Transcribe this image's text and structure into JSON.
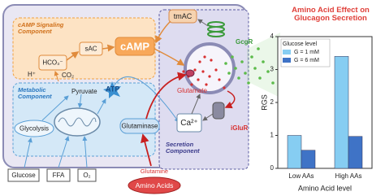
{
  "diagram": {
    "tmac": "tmAC",
    "camp_component": "cAMP Signaling Component",
    "sac": "sAC",
    "camp": "cAMP",
    "hco3": "HCO₃⁻",
    "h": "H⁺",
    "co2": "CO₂",
    "gcgr": "GcgR",
    "metabolic_component": "Metabolic Component",
    "pyruvate": "Pyruvate",
    "atp": "ATP",
    "glycolysis": "Glycolysis",
    "glutaminase": "Glutaminase",
    "glutamate": "Glutamate",
    "iglur": "iGluR",
    "ca": "Ca²⁺",
    "secretion_component": "Secretion Component",
    "glucose": "Glucose",
    "ffa": "FFA",
    "o2": "O₂",
    "amino_acids": "Amino Acids",
    "glutamine": "Glutamine"
  },
  "chart_data": {
    "type": "bar",
    "title": "Amino Acid Effect on Glucagon Secretion",
    "x_label": "Amino Acid level",
    "y_label": "RGS",
    "legend_title": "Glucose level",
    "categories": [
      "Low AAs",
      "High AAs"
    ],
    "series": [
      {
        "name": "G = 1 mM",
        "color": "#86cdf2",
        "values": [
          1.0,
          3.4
        ]
      },
      {
        "name": "G = 6 mM",
        "color": "#3f73c6",
        "values": [
          0.55,
          0.97
        ]
      }
    ],
    "ylim": [
      0,
      4
    ],
    "yticks": [
      0,
      1,
      2,
      3,
      4
    ]
  }
}
